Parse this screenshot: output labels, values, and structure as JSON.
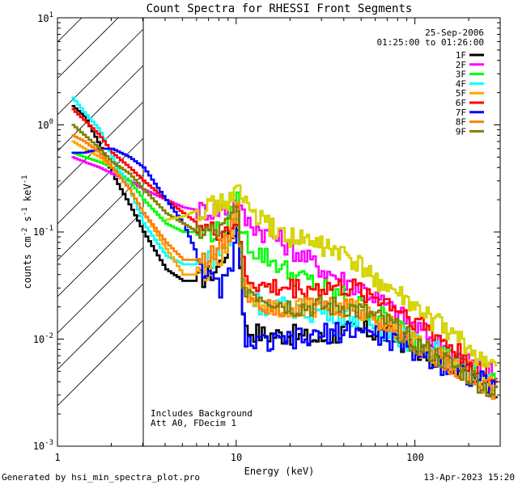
{
  "chart_data": {
    "type": "line",
    "title": "Count Spectra for RHESSI Front Segments",
    "xlabel": "Energy (keV)",
    "ylabel_parts": {
      "a": "counts cm",
      "b": "-2",
      "c": " s",
      "d": "-1",
      "e": " keV",
      "f": "-1"
    },
    "xscale": "log",
    "yscale": "log",
    "xlim": [
      1,
      300
    ],
    "ylim": [
      0.001,
      10
    ],
    "x_tick_labels": [
      "1",
      "10",
      "100"
    ],
    "y_tick_labels": [
      {
        "base": "10",
        "exp": "-3",
        "value": 0.001
      },
      {
        "base": "10",
        "exp": "-2",
        "value": 0.01
      },
      {
        "base": "10",
        "exp": "-1",
        "value": 0.1
      },
      {
        "base": "10",
        "exp": "0",
        "value": 1
      },
      {
        "base": "10",
        "exp": "1",
        "value": 10
      }
    ],
    "hatched_region_xmax_keV": 3,
    "date": "25-Sep-2006",
    "time_range": "01:25:00 to 01:26:00",
    "notes": [
      "Includes Background",
      "Att A0, FDecim 1"
    ],
    "anchor_energies": [
      1.2,
      1.4,
      1.7,
      2.0,
      2.5,
      3.0,
      4.0,
      5.0,
      6.0,
      7.0,
      8.0,
      9.0,
      9.5,
      10.0,
      10.5,
      11.0,
      12.0,
      14.0,
      17.0,
      20.0,
      25.0,
      30.0,
      40.0,
      50.0,
      70.0,
      100.0,
      150.0,
      200.0,
      250.0,
      290.0
    ],
    "series": [
      {
        "name": "1F",
        "color": "#000000",
        "values": [
          1.5,
          1.2,
          0.65,
          0.35,
          0.18,
          0.1,
          0.045,
          0.035,
          0.035,
          0.04,
          0.05,
          0.08,
          0.1,
          0.12,
          0.04,
          0.012,
          0.012,
          0.011,
          0.011,
          0.011,
          0.01,
          0.01,
          0.012,
          0.012,
          0.011,
          0.008,
          0.006,
          0.005,
          0.004,
          0.003
        ]
      },
      {
        "name": "2F",
        "color": "#ff00ff",
        "values": [
          0.5,
          0.45,
          0.4,
          0.35,
          0.3,
          0.25,
          0.2,
          0.17,
          0.16,
          0.16,
          0.16,
          0.17,
          0.18,
          0.2,
          0.15,
          0.13,
          0.12,
          0.1,
          0.085,
          0.07,
          0.055,
          0.045,
          0.035,
          0.03,
          0.02,
          0.013,
          0.008,
          0.006,
          0.005,
          0.0045
        ]
      },
      {
        "name": "3F",
        "color": "#00ff00",
        "values": [
          0.55,
          0.5,
          0.45,
          0.4,
          0.3,
          0.2,
          0.12,
          0.1,
          0.1,
          0.1,
          0.1,
          0.12,
          0.15,
          0.2,
          0.1,
          0.09,
          0.07,
          0.06,
          0.05,
          0.04,
          0.035,
          0.03,
          0.025,
          0.02,
          0.015,
          0.01,
          0.007,
          0.005,
          0.0045,
          0.004
        ]
      },
      {
        "name": "4F",
        "color": "#00ffff",
        "values": [
          1.8,
          1.3,
          0.9,
          0.5,
          0.25,
          0.12,
          0.06,
          0.05,
          0.05,
          0.055,
          0.065,
          0.08,
          0.11,
          0.13,
          0.05,
          0.03,
          0.025,
          0.02,
          0.02,
          0.02,
          0.018,
          0.018,
          0.017,
          0.015,
          0.012,
          0.009,
          0.007,
          0.005,
          0.004,
          0.0035
        ]
      },
      {
        "name": "5F",
        "color": "#ffa500",
        "values": [
          0.7,
          0.6,
          0.5,
          0.4,
          0.25,
          0.15,
          0.07,
          0.04,
          0.04,
          0.045,
          0.055,
          0.07,
          0.1,
          0.22,
          0.05,
          0.03,
          0.025,
          0.02,
          0.02,
          0.02,
          0.02,
          0.02,
          0.019,
          0.018,
          0.014,
          0.009,
          0.006,
          0.005,
          0.004,
          0.0033
        ]
      },
      {
        "name": "6F",
        "color": "#ff0000",
        "values": [
          1.4,
          1.1,
          0.8,
          0.55,
          0.4,
          0.3,
          0.2,
          0.15,
          0.12,
          0.1,
          0.1,
          0.11,
          0.12,
          0.14,
          0.07,
          0.04,
          0.035,
          0.03,
          0.03,
          0.03,
          0.03,
          0.03,
          0.03,
          0.028,
          0.022,
          0.015,
          0.009,
          0.006,
          0.0045,
          0.0035
        ]
      },
      {
        "name": "7F",
        "color": "#0000ff",
        "values": [
          0.55,
          0.55,
          0.6,
          0.6,
          0.5,
          0.4,
          0.2,
          0.12,
          0.06,
          0.035,
          0.03,
          0.04,
          0.06,
          0.1,
          0.03,
          0.011,
          0.009,
          0.009,
          0.009,
          0.01,
          0.01,
          0.011,
          0.012,
          0.012,
          0.01,
          0.0075,
          0.0055,
          0.0045,
          0.0038,
          0.003
        ]
      },
      {
        "name": "8F",
        "color": "#ff8000",
        "values": [
          0.8,
          0.7,
          0.55,
          0.4,
          0.25,
          0.15,
          0.08,
          0.055,
          0.055,
          0.06,
          0.07,
          0.09,
          0.12,
          0.2,
          0.06,
          0.03,
          0.025,
          0.022,
          0.02,
          0.02,
          0.02,
          0.02,
          0.02,
          0.018,
          0.014,
          0.009,
          0.006,
          0.0045,
          0.0035,
          0.003
        ]
      },
      {
        "name": "9F",
        "color": "#808000",
        "values": [
          1.0,
          0.8,
          0.6,
          0.45,
          0.35,
          0.25,
          0.15,
          0.12,
          0.1,
          0.1,
          0.1,
          0.12,
          0.15,
          0.2,
          0.05,
          0.03,
          0.028,
          0.025,
          0.022,
          0.02,
          0.02,
          0.02,
          0.02,
          0.018,
          0.014,
          0.009,
          0.006,
          0.0045,
          0.0035,
          0.0028
        ]
      },
      {
        "name": "",
        "color": "#d4d400",
        "values": [
          null,
          null,
          null,
          null,
          null,
          null,
          0.13,
          0.14,
          0.16,
          0.17,
          0.18,
          0.2,
          0.22,
          0.25,
          0.21,
          0.19,
          0.16,
          0.12,
          0.1,
          0.09,
          0.08,
          0.075,
          0.06,
          0.045,
          0.03,
          0.019,
          0.012,
          0.008,
          0.006,
          0.005
        ]
      }
    ]
  },
  "footer": {
    "left": "Generated by hsi_min_spectra_plot.pro",
    "right": "13-Apr-2023 15:20"
  }
}
